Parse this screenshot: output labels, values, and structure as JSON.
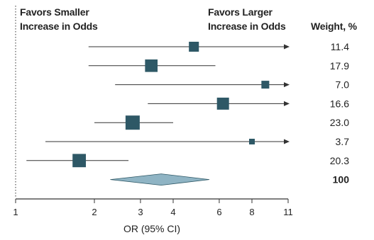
{
  "chart_data": {
    "type": "forest",
    "left_header": [
      "Favors Smaller",
      "Increase in Odds"
    ],
    "right_header": [
      "Favors Larger",
      "Increase in Odds"
    ],
    "weight_header": "Weight, %",
    "xlabel": "OR (95% CI)",
    "x_scale": "log",
    "xlim": [
      1,
      11
    ],
    "reference_line": 1,
    "tick_values": [
      1,
      2,
      3,
      4,
      6,
      8,
      11
    ],
    "tick_labels": [
      "1",
      "2",
      "3",
      "4",
      "6",
      "8",
      "11"
    ],
    "studies": [
      {
        "or": 4.8,
        "ci_low": 1.9,
        "ci_high": 11,
        "ci_high_exceeds_axis": true,
        "weight_label": "11.4"
      },
      {
        "or": 3.3,
        "ci_low": 1.9,
        "ci_high": 5.8,
        "ci_high_exceeds_axis": false,
        "weight_label": "17.9"
      },
      {
        "or": 9.0,
        "ci_low": 2.4,
        "ci_high": 11,
        "ci_high_exceeds_axis": true,
        "weight_label": "7.0"
      },
      {
        "or": 6.2,
        "ci_low": 3.2,
        "ci_high": 11,
        "ci_high_exceeds_axis": true,
        "weight_label": "16.6"
      },
      {
        "or": 2.8,
        "ci_low": 2.0,
        "ci_high": 4.0,
        "ci_high_exceeds_axis": false,
        "weight_label": "23.0"
      },
      {
        "or": 8.0,
        "ci_low": 1.3,
        "ci_high": 11,
        "ci_high_exceeds_axis": true,
        "weight_label": "3.7"
      },
      {
        "or": 1.75,
        "ci_low": 1.1,
        "ci_high": 2.7,
        "ci_high_exceeds_axis": false,
        "weight_label": "20.3"
      }
    ],
    "pooled": {
      "or": 3.6,
      "ci_low": 2.3,
      "ci_high": 5.5,
      "weight_label": "100"
    },
    "colors": {
      "marker": "#2e5866",
      "pooled": "#8fb4c4",
      "pooled_edge": "#2e5866",
      "line": "#333333"
    }
  }
}
